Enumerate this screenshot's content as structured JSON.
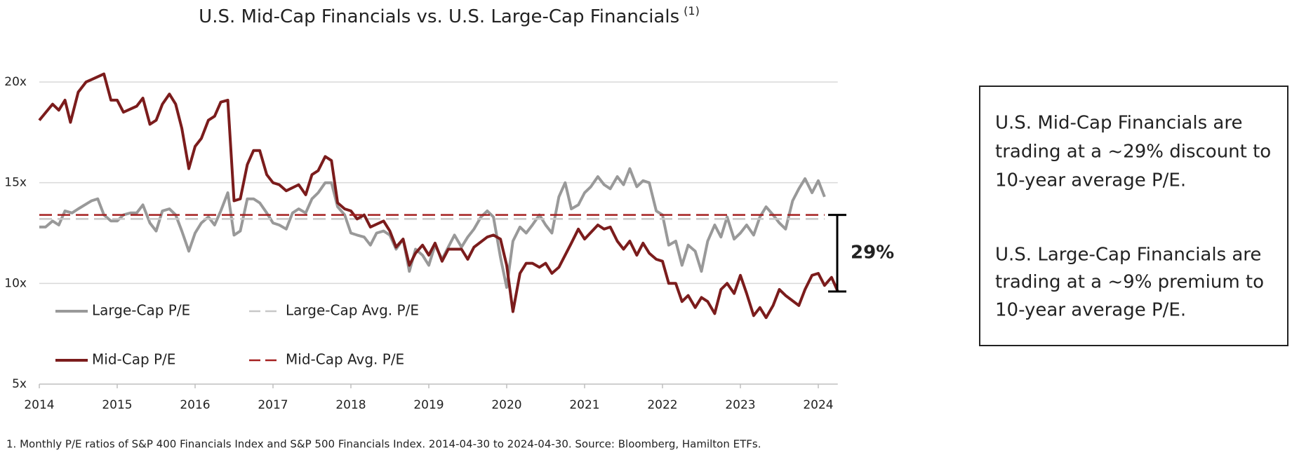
{
  "chart_data": {
    "type": "line",
    "title": "U.S. Mid-Cap Financials vs. U.S. Large-Cap Financials",
    "title_note": "(1)",
    "xlim": [
      2014,
      2024.25
    ],
    "xticks": [
      2014,
      2015,
      2016,
      2017,
      2018,
      2019,
      2020,
      2021,
      2022,
      2023,
      2024
    ],
    "ylim": [
      5,
      20
    ],
    "yticks": [
      {
        "value": 5,
        "label": "5x"
      },
      {
        "value": 10,
        "label": "10x"
      },
      {
        "value": 15,
        "label": "15x"
      },
      {
        "value": 20,
        "label": "20x"
      }
    ],
    "grid": true,
    "series": [
      {
        "name": "Large-Cap P/E",
        "color": "#999999",
        "dashed": false,
        "x": [
          2014.0,
          2014.08,
          2014.17,
          2014.25,
          2014.33,
          2014.42,
          2014.5,
          2014.67,
          2014.75,
          2014.83,
          2014.92,
          2015.0,
          2015.08,
          2015.17,
          2015.25,
          2015.33,
          2015.42,
          2015.5,
          2015.58,
          2015.67,
          2015.75,
          2015.83,
          2015.92,
          2016.0,
          2016.08,
          2016.17,
          2016.25,
          2016.33,
          2016.42,
          2016.5,
          2016.58,
          2016.67,
          2016.75,
          2016.83,
          2016.92,
          2017.0,
          2017.08,
          2017.17,
          2017.25,
          2017.33,
          2017.42,
          2017.5,
          2017.58,
          2017.67,
          2017.75,
          2017.83,
          2017.92,
          2018.0,
          2018.08,
          2018.17,
          2018.25,
          2018.33,
          2018.42,
          2018.5,
          2018.58,
          2018.67,
          2018.75,
          2018.83,
          2018.92,
          2019.0,
          2019.08,
          2019.17,
          2019.25,
          2019.33,
          2019.42,
          2019.5,
          2019.58,
          2019.67,
          2019.75,
          2019.83,
          2019.92,
          2020.0,
          2020.08,
          2020.17,
          2020.25,
          2020.33,
          2020.42,
          2020.5,
          2020.58,
          2020.67,
          2020.75,
          2020.83,
          2020.92,
          2021.0,
          2021.08,
          2021.17,
          2021.25,
          2021.33,
          2021.42,
          2021.5,
          2021.58,
          2021.67,
          2021.75,
          2021.83,
          2021.92,
          2022.0,
          2022.08,
          2022.17,
          2022.25,
          2022.33,
          2022.42,
          2022.5,
          2022.58,
          2022.67,
          2022.75,
          2022.83,
          2022.92,
          2023.0,
          2023.08,
          2023.17,
          2023.25,
          2023.33,
          2023.42,
          2023.5,
          2023.58,
          2023.67,
          2023.75,
          2023.83,
          2023.92,
          2024.0,
          2024.08
        ],
        "values": [
          12.8,
          12.8,
          13.1,
          12.9,
          13.6,
          13.5,
          13.7,
          14.1,
          14.2,
          13.4,
          13.1,
          13.1,
          13.4,
          13.5,
          13.5,
          13.9,
          13.0,
          12.6,
          13.6,
          13.7,
          13.4,
          12.6,
          11.6,
          12.5,
          13.0,
          13.3,
          12.9,
          13.6,
          14.5,
          12.4,
          12.6,
          14.2,
          14.2,
          14.0,
          13.5,
          13.0,
          12.9,
          12.7,
          13.5,
          13.7,
          13.5,
          14.2,
          14.5,
          15.0,
          15.0,
          13.8,
          13.4,
          12.5,
          12.4,
          12.3,
          11.9,
          12.5,
          12.6,
          12.4,
          11.7,
          12.2,
          10.6,
          11.7,
          11.4,
          10.9,
          11.9,
          11.2,
          11.8,
          12.4,
          11.8,
          12.3,
          12.7,
          13.3,
          13.6,
          13.3,
          11.3,
          9.8,
          12.1,
          12.8,
          12.5,
          12.9,
          13.4,
          12.9,
          12.5,
          14.3,
          15.0,
          13.7,
          13.9,
          14.5,
          14.8,
          15.3,
          14.9,
          14.7,
          15.3,
          14.9,
          15.7,
          14.8,
          15.1,
          15.0,
          13.6,
          13.4,
          11.9,
          12.1,
          10.9,
          11.9,
          11.6,
          10.6,
          12.1,
          12.9,
          12.3,
          13.3,
          12.2,
          12.5,
          12.9,
          12.4,
          13.3,
          13.8,
          13.4,
          13.0,
          12.7,
          14.1,
          14.7,
          15.2,
          14.5,
          15.1,
          14.3
        ]
      },
      {
        "name": "Large-Cap Avg. P/E",
        "color": "#c8c8c8",
        "dashed": true,
        "x": [
          2014,
          2024.08
        ],
        "values": [
          13.2,
          13.2
        ]
      },
      {
        "name": "Mid-Cap P/E",
        "color": "#7b1c1c",
        "dashed": false,
        "x": [
          2014.0,
          2014.17,
          2014.25,
          2014.33,
          2014.4,
          2014.5,
          2014.6,
          2014.83,
          2014.92,
          2015.0,
          2015.08,
          2015.25,
          2015.33,
          2015.42,
          2015.5,
          2015.58,
          2015.67,
          2015.75,
          2015.83,
          2015.92,
          2016.0,
          2016.08,
          2016.17,
          2016.25,
          2016.33,
          2016.42,
          2016.5,
          2016.58,
          2016.67,
          2016.75,
          2016.83,
          2016.92,
          2017.0,
          2017.08,
          2017.17,
          2017.33,
          2017.42,
          2017.5,
          2017.58,
          2017.67,
          2017.75,
          2017.83,
          2017.92,
          2018.0,
          2018.08,
          2018.17,
          2018.25,
          2018.42,
          2018.5,
          2018.58,
          2018.67,
          2018.75,
          2018.83,
          2018.92,
          2019.0,
          2019.08,
          2019.17,
          2019.25,
          2019.42,
          2019.5,
          2019.58,
          2019.75,
          2019.83,
          2019.92,
          2020.0,
          2020.08,
          2020.17,
          2020.25,
          2020.33,
          2020.42,
          2020.5,
          2020.58,
          2020.67,
          2020.83,
          2020.92,
          2021.0,
          2021.17,
          2021.25,
          2021.33,
          2021.42,
          2021.5,
          2021.58,
          2021.67,
          2021.75,
          2021.83,
          2021.92,
          2022.0,
          2022.08,
          2022.17,
          2022.25,
          2022.33,
          2022.42,
          2022.5,
          2022.58,
          2022.67,
          2022.75,
          2022.83,
          2022.92,
          2023.0,
          2023.08,
          2023.17,
          2023.25,
          2023.33,
          2023.42,
          2023.5,
          2023.58,
          2023.75,
          2023.83,
          2023.92,
          2024.0,
          2024.08,
          2024.17,
          2024.25
        ],
        "values": [
          18.1,
          18.9,
          18.6,
          19.1,
          18.0,
          19.5,
          20.0,
          20.4,
          19.1,
          19.1,
          18.5,
          18.8,
          19.2,
          17.9,
          18.1,
          18.9,
          19.4,
          18.9,
          17.7,
          15.7,
          16.8,
          17.2,
          18.1,
          18.3,
          19.0,
          19.1,
          14.1,
          14.2,
          15.9,
          16.6,
          16.6,
          15.4,
          15.0,
          14.9,
          14.6,
          14.9,
          14.4,
          15.4,
          15.6,
          16.3,
          16.1,
          14.0,
          13.7,
          13.6,
          13.2,
          13.4,
          12.8,
          13.1,
          12.6,
          11.8,
          12.2,
          10.9,
          11.5,
          11.9,
          11.4,
          12.0,
          11.1,
          11.7,
          11.7,
          11.2,
          11.8,
          12.3,
          12.4,
          12.2,
          10.9,
          8.6,
          10.5,
          11.0,
          11.0,
          10.8,
          11.0,
          10.5,
          10.8,
          12.0,
          12.7,
          12.2,
          12.9,
          12.7,
          12.8,
          12.1,
          11.7,
          12.1,
          11.4,
          12.0,
          11.5,
          11.2,
          11.1,
          10.0,
          10.0,
          9.1,
          9.4,
          8.8,
          9.3,
          9.1,
          8.5,
          9.7,
          10.0,
          9.5,
          10.4,
          9.5,
          8.4,
          8.8,
          8.3,
          8.9,
          9.7,
          9.4,
          8.9,
          9.7,
          10.4,
          10.5,
          9.9,
          10.3,
          9.6
        ]
      },
      {
        "name": "Mid-Cap Avg. P/E",
        "color": "#a52020",
        "dashed": true,
        "x": [
          2014,
          2024.08
        ],
        "values": [
          13.4,
          13.4
        ]
      }
    ],
    "gap_label": "29%",
    "gap_range": [
      13.4,
      9.6
    ],
    "callout": [
      [
        "U.S. Mid-Cap Financials are",
        "trading at a ~29% discount to",
        "10-year average P/E."
      ],
      [
        "U.S. Large-Cap Financials are",
        "trading at a ~9% premium to",
        "10-year average P/E."
      ]
    ],
    "footnote": "1. Monthly P/E ratios of S&P 400 Financials Index and S&P 500 Financials Index. 2014-04-30 to 2024-04-30. Source: Bloomberg, Hamilton ETFs."
  }
}
